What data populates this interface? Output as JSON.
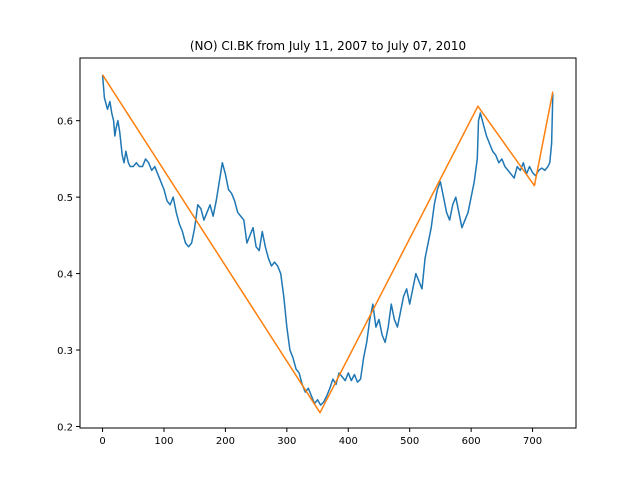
{
  "chart_data": {
    "type": "line",
    "title": "(NO) CI.BK from July 11, 2007 to July 07, 2010",
    "xlabel": "",
    "ylabel": "",
    "xlim": [
      -36.7,
      770.7
    ],
    "ylim": [
      0.198,
      0.682
    ],
    "x_ticks": [
      0,
      100,
      200,
      300,
      400,
      500,
      600,
      700
    ],
    "y_ticks": [
      0.2,
      0.3,
      0.4,
      0.5,
      0.6
    ],
    "y_tick_labels": [
      "0.2",
      "0.3",
      "0.4",
      "0.5",
      "0.6"
    ],
    "grid": false,
    "legend": "none",
    "series": [
      {
        "color": "#1f77b4",
        "x": [
          0,
          3,
          8,
          12,
          15,
          18,
          20,
          22,
          25,
          28,
          32,
          35,
          38,
          42,
          45,
          50,
          55,
          60,
          65,
          70,
          75,
          80,
          85,
          90,
          95,
          100,
          105,
          110,
          115,
          120,
          125,
          130,
          135,
          140,
          145,
          150,
          155,
          160,
          165,
          170,
          175,
          180,
          185,
          190,
          195,
          200,
          205,
          210,
          215,
          220,
          225,
          230,
          235,
          240,
          245,
          250,
          255,
          260,
          265,
          270,
          275,
          280,
          285,
          290,
          295,
          300,
          305,
          310,
          315,
          320,
          325,
          330,
          335,
          340,
          345,
          350,
          355,
          360,
          365,
          370,
          375,
          380,
          385,
          390,
          395,
          400,
          405,
          410,
          415,
          420,
          425,
          430,
          435,
          440,
          445,
          450,
          455,
          460,
          465,
          470,
          475,
          480,
          485,
          490,
          495,
          500,
          505,
          510,
          515,
          520,
          525,
          530,
          535,
          540,
          545,
          550,
          555,
          560,
          565,
          570,
          575,
          580,
          585,
          590,
          595,
          600,
          605,
          610,
          612,
          615,
          620,
          625,
          630,
          635,
          640,
          645,
          650,
          655,
          660,
          665,
          670,
          675,
          680,
          685,
          690,
          695,
          700,
          705,
          710,
          715,
          720,
          725,
          728,
          731,
          733
        ],
        "y": [
          0.66,
          0.63,
          0.615,
          0.625,
          0.61,
          0.6,
          0.58,
          0.59,
          0.6,
          0.585,
          0.555,
          0.545,
          0.56,
          0.545,
          0.54,
          0.54,
          0.545,
          0.54,
          0.54,
          0.55,
          0.545,
          0.535,
          0.54,
          0.53,
          0.52,
          0.51,
          0.495,
          0.49,
          0.5,
          0.48,
          0.465,
          0.455,
          0.44,
          0.435,
          0.44,
          0.46,
          0.49,
          0.485,
          0.47,
          0.48,
          0.49,
          0.475,
          0.495,
          0.52,
          0.545,
          0.53,
          0.51,
          0.505,
          0.495,
          0.48,
          0.475,
          0.47,
          0.44,
          0.45,
          0.46,
          0.435,
          0.43,
          0.455,
          0.435,
          0.42,
          0.41,
          0.415,
          0.41,
          0.4,
          0.37,
          0.33,
          0.3,
          0.29,
          0.275,
          0.27,
          0.255,
          0.245,
          0.25,
          0.24,
          0.23,
          0.235,
          0.228,
          0.232,
          0.24,
          0.25,
          0.262,
          0.255,
          0.27,
          0.265,
          0.26,
          0.27,
          0.26,
          0.268,
          0.258,
          0.262,
          0.29,
          0.31,
          0.34,
          0.36,
          0.33,
          0.34,
          0.32,
          0.31,
          0.33,
          0.36,
          0.34,
          0.33,
          0.35,
          0.37,
          0.38,
          0.36,
          0.38,
          0.4,
          0.39,
          0.38,
          0.42,
          0.44,
          0.46,
          0.49,
          0.51,
          0.52,
          0.5,
          0.48,
          0.47,
          0.49,
          0.5,
          0.48,
          0.46,
          0.47,
          0.48,
          0.5,
          0.52,
          0.55,
          0.6,
          0.61,
          0.595,
          0.58,
          0.57,
          0.56,
          0.555,
          0.545,
          0.55,
          0.54,
          0.535,
          0.53,
          0.525,
          0.54,
          0.535,
          0.545,
          0.53,
          0.54,
          0.532,
          0.528,
          0.535,
          0.538,
          0.535,
          0.54,
          0.545,
          0.57,
          0.635
        ]
      },
      {
        "color": "#ff7f0e",
        "x": [
          0,
          354,
          611,
          703,
          733
        ],
        "y": [
          0.66,
          0.218,
          0.619,
          0.515,
          0.638
        ]
      }
    ]
  }
}
